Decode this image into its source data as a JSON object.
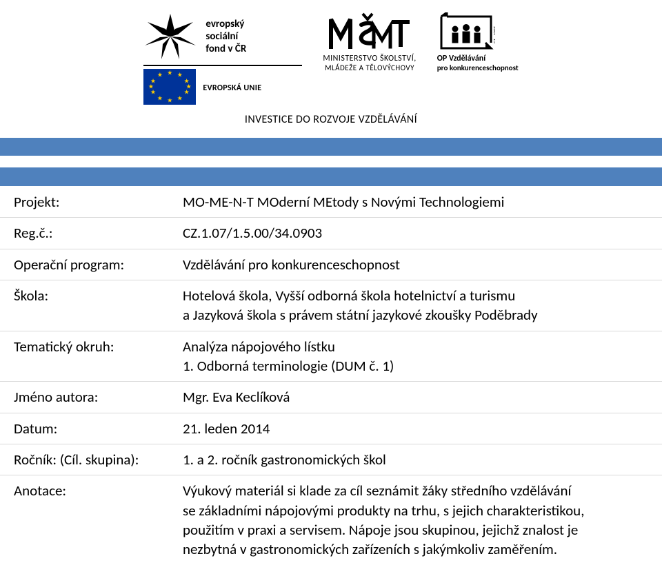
{
  "logos": {
    "esf": {
      "l1": "evropský",
      "l2": "sociální",
      "l3": "fond v ČR"
    },
    "eu_label": "EVROPSKÁ UNIE",
    "msmt": {
      "l1": "MINISTERSTVO ŠKOLSTVÍ,",
      "l2": "MLÁDEŽE A TĚLOVÝCHOVY"
    },
    "op": {
      "l1": "OP Vzdělávání",
      "l2": "pro konkurenceschopnost"
    },
    "investice": "INVESTICE DO ROZVOJE VZDĚLÁVÁNÍ"
  },
  "rows": [
    {
      "label": "Projekt:",
      "value": "MO-ME-N-T MOderní MEtody s Novými Technologiemi"
    },
    {
      "label": "Reg.č.:",
      "value": "CZ.1.07/1.5.00/34.0903"
    },
    {
      "label": "Operační program:",
      "value": "Vzdělávání pro konkurenceschopnost"
    },
    {
      "label": "Škola:",
      "value": "Hotelová škola, Vyšší odborná škola hotelnictví a turismu\na Jazyková škola s právem státní jazykové zkoušky Poděbrady"
    },
    {
      "label": "Tematický okruh:",
      "value": "Analýza nápojového lístku\n1. Odborná terminologie (DUM č. 1)"
    },
    {
      "label": "Jméno autora:",
      "value": "Mgr. Eva Keclíková"
    },
    {
      "label": "Datum:",
      "value": "21. leden 2014"
    },
    {
      "label": "Ročník: (Cíl. skupina):",
      "value": "1. a 2. ročník gastronomických škol"
    },
    {
      "label": "Anotace:",
      "value": "Výukový materiál si klade za cíl seznámit žáky středního vzdělávání\nse základními nápojovými produkty na trhu, s jejich charakteristikou,\npoužitím v praxi a servisem. Nápoje jsou skupinou, jejichž znalost je\nnezbytná v gastronomických zařízeních s jakýmkoliv zaměřením."
    }
  ],
  "colors": {
    "band": "#4f81bd",
    "row_border": "#d9d9d9",
    "eu_blue": "#003399",
    "eu_gold": "#ffcc00"
  }
}
